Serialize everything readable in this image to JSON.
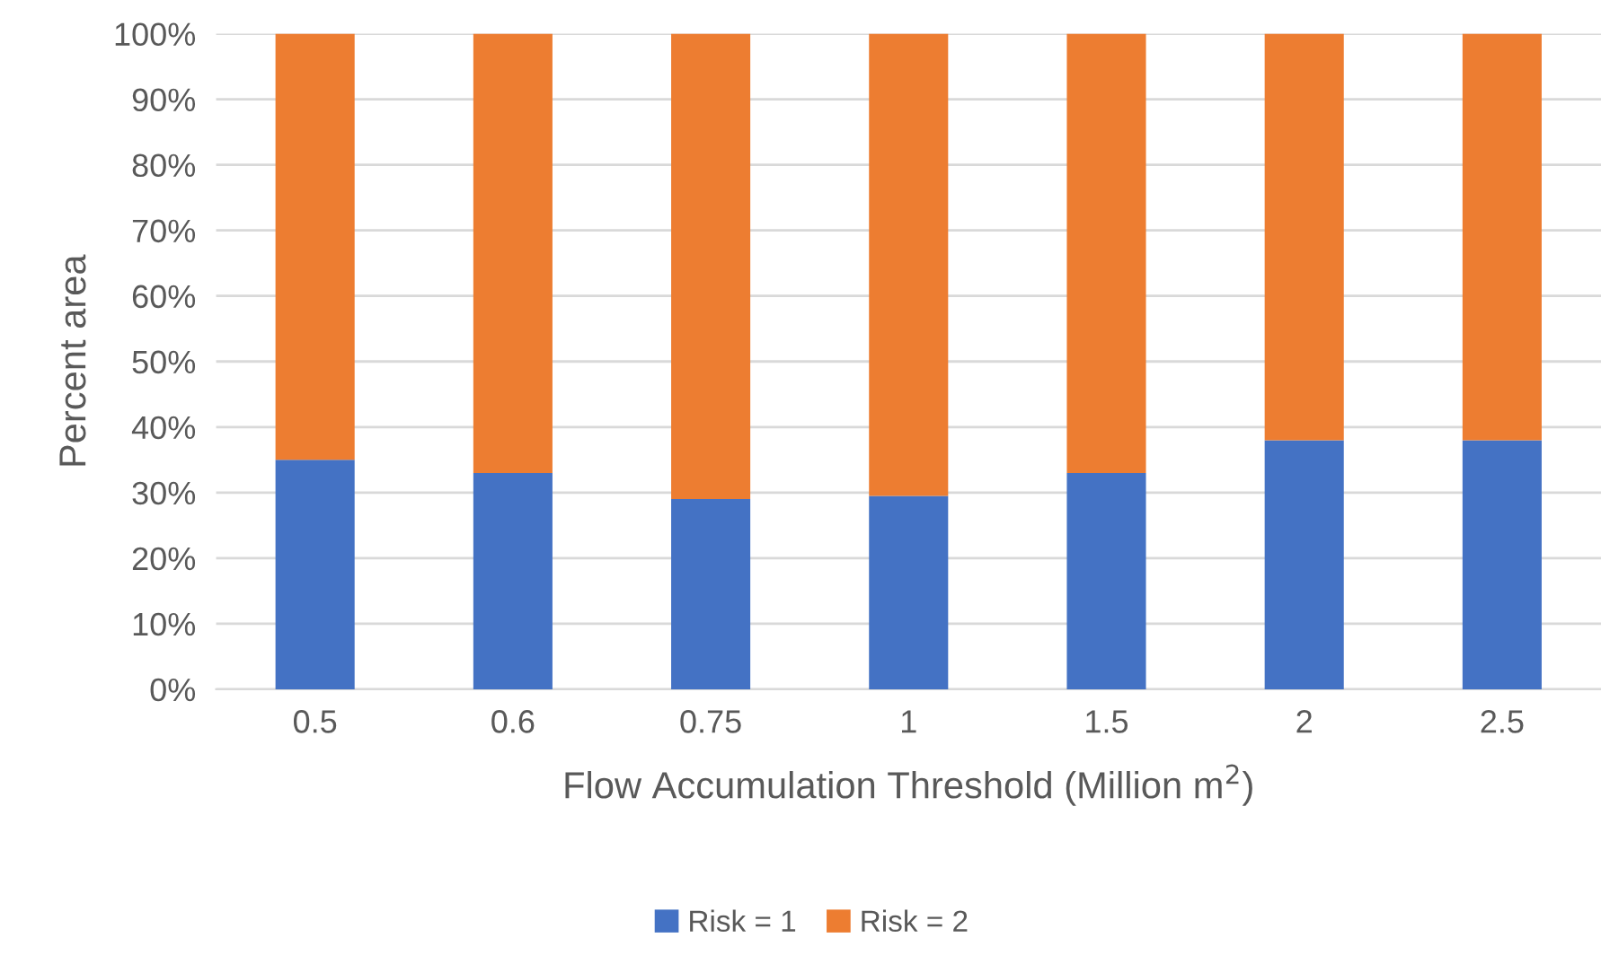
{
  "chart_data": {
    "type": "bar",
    "stacked": true,
    "categories": [
      "0.5",
      "0.6",
      "0.75",
      "1",
      "1.5",
      "2",
      "2.5"
    ],
    "series": [
      {
        "name": "Risk = 1",
        "color": "#4472c4",
        "values": [
          35,
          33,
          29,
          29.5,
          33,
          38,
          38
        ]
      },
      {
        "name": "Risk = 2",
        "color": "#ed7d31",
        "values": [
          65,
          67,
          71,
          70.5,
          67,
          62,
          62
        ]
      }
    ],
    "xlabel": "Flow Accumulation Threshold (Million m$^{2}$)",
    "ylabel": "Percent area",
    "ylim": [
      0,
      100
    ],
    "yticks": [
      {
        "value": 0,
        "label": "0%"
      },
      {
        "value": 10,
        "label": "10%"
      },
      {
        "value": 20,
        "label": "20%"
      },
      {
        "value": 30,
        "label": "30%"
      },
      {
        "value": 40,
        "label": "40%"
      },
      {
        "value": 50,
        "label": "50%"
      },
      {
        "value": 60,
        "label": "60%"
      },
      {
        "value": 70,
        "label": "70%"
      },
      {
        "value": 80,
        "label": "80%"
      },
      {
        "value": 90,
        "label": "90%"
      },
      {
        "value": 100,
        "label": "100%"
      }
    ],
    "grid": "y",
    "legend": "bottom"
  }
}
